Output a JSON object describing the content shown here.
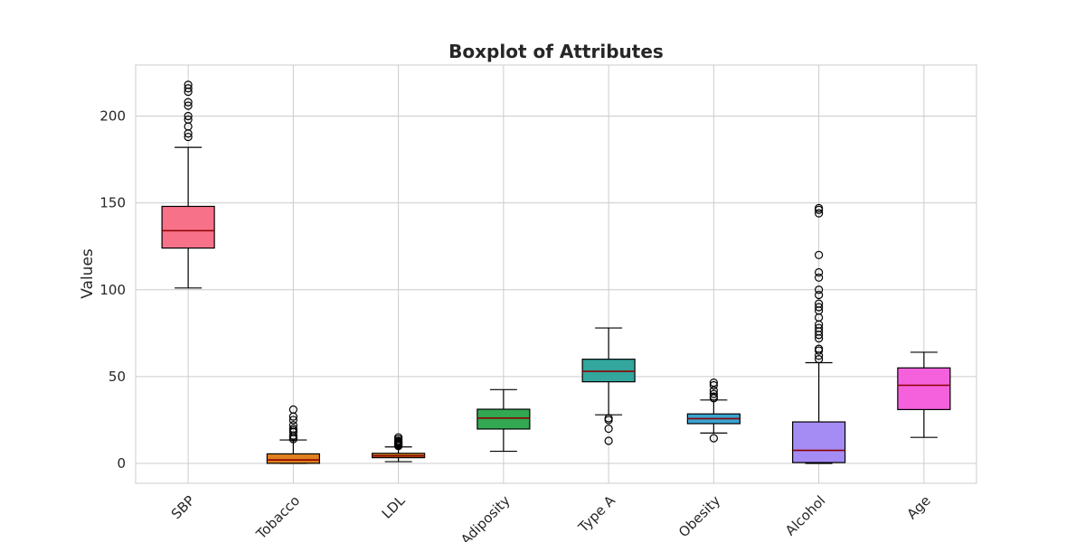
{
  "chart_data": {
    "type": "boxplot",
    "title": "Boxplot of Attributes",
    "xlabel": "",
    "ylabel": "Values",
    "ylim": [
      -11,
      230
    ],
    "yticks": [
      0,
      50,
      100,
      150,
      200
    ],
    "grid": true,
    "series": [
      {
        "name": "SBP",
        "color": "#f77189",
        "whisker_low": 101,
        "q1": 124,
        "median": 134,
        "q3": 148,
        "whisker_high": 182,
        "outliers": [
          188,
          190,
          194,
          198,
          200,
          206,
          208,
          214,
          216,
          218
        ]
      },
      {
        "name": "Tobacco",
        "color": "#e0801e",
        "whisker_low": 0,
        "q1": 0.05,
        "median": 2.0,
        "q3": 5.5,
        "whisker_high": 13.5,
        "outliers": [
          14,
          15,
          16,
          18,
          19,
          20,
          22,
          25,
          27,
          31
        ]
      },
      {
        "name": "LDL",
        "color": "#c0791d",
        "whisker_low": 1,
        "q1": 3.3,
        "median": 4.3,
        "q3": 5.8,
        "whisker_high": 9.5,
        "outliers": [
          10,
          10.5,
          11,
          11.5,
          12,
          12.5,
          13,
          14,
          15
        ]
      },
      {
        "name": "Adiposity",
        "color": "#32a852",
        "whisker_low": 7,
        "q1": 19.8,
        "median": 26.1,
        "q3": 31.2,
        "whisker_high": 42.5,
        "outliers": []
      },
      {
        "name": "Type A",
        "color": "#33a69e",
        "whisker_low": 28,
        "q1": 47,
        "median": 53,
        "q3": 60,
        "whisker_high": 78,
        "outliers": [
          13,
          20,
          25,
          26
        ]
      },
      {
        "name": "Obesity",
        "color": "#3ba3d0",
        "whisker_low": 17.5,
        "q1": 22.9,
        "median": 25.8,
        "q3": 28.5,
        "whisker_high": 36.5,
        "outliers": [
          14.5,
          37.5,
          38.5,
          40,
          42,
          45,
          46.5
        ]
      },
      {
        "name": "Alcohol",
        "color": "#a48cf4",
        "whisker_low": 0,
        "q1": 0.5,
        "median": 7.5,
        "q3": 23.9,
        "whisker_high": 58,
        "outliers": [
          60,
          62,
          65,
          66,
          72,
          74,
          76,
          78,
          80,
          84,
          88,
          90,
          92,
          97,
          100,
          107,
          110,
          120,
          144,
          146,
          147
        ]
      },
      {
        "name": "Age",
        "color": "#f561dd",
        "whisker_low": 15,
        "q1": 31,
        "median": 45,
        "q3": 55,
        "whisker_high": 64,
        "outliers": []
      }
    ]
  }
}
